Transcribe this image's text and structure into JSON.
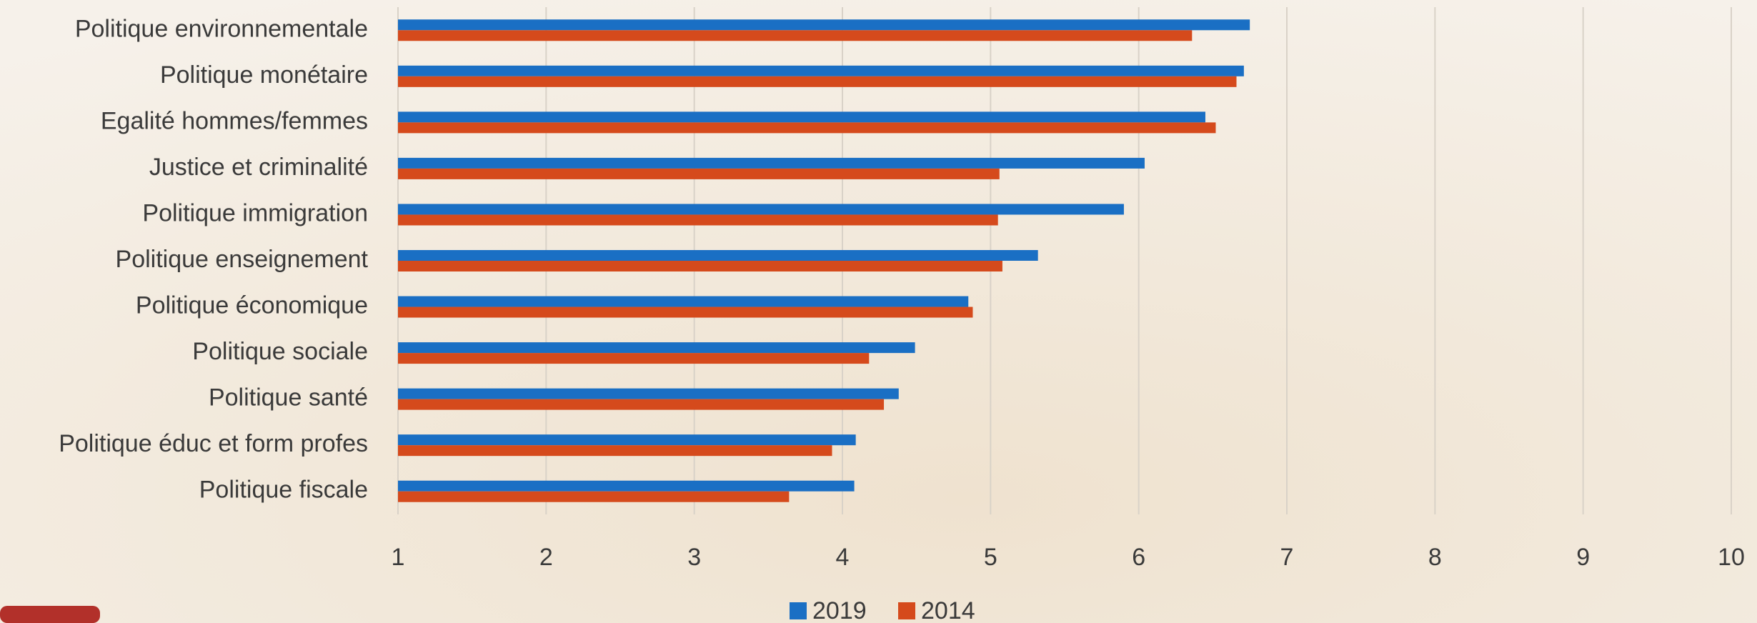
{
  "chart_data": {
    "type": "bar",
    "orientation": "horizontal",
    "categories": [
      "Politique environnementale",
      "Politique monétaire",
      "Egalité hommes/femmes",
      "Justice et criminalité",
      "Politique immigration",
      "Politique enseignement",
      "Politique économique",
      "Politique sociale",
      "Politique santé",
      "Politique éduc et form profes",
      "Politique fiscale"
    ],
    "series": [
      {
        "name": "2019",
        "color": "#1a6fc4",
        "values": [
          6.75,
          6.71,
          6.45,
          6.04,
          5.9,
          5.32,
          4.85,
          4.49,
          4.38,
          4.09,
          4.08
        ]
      },
      {
        "name": "2014",
        "color": "#d54a1c",
        "values": [
          6.36,
          6.66,
          6.52,
          5.06,
          5.05,
          5.08,
          4.88,
          4.18,
          4.28,
          3.93,
          3.64
        ]
      }
    ],
    "xlim": [
      1,
      10
    ],
    "xticks": [
      1,
      2,
      3,
      4,
      5,
      6,
      7,
      8,
      9,
      10
    ],
    "grid": true,
    "legend": "bottom"
  }
}
